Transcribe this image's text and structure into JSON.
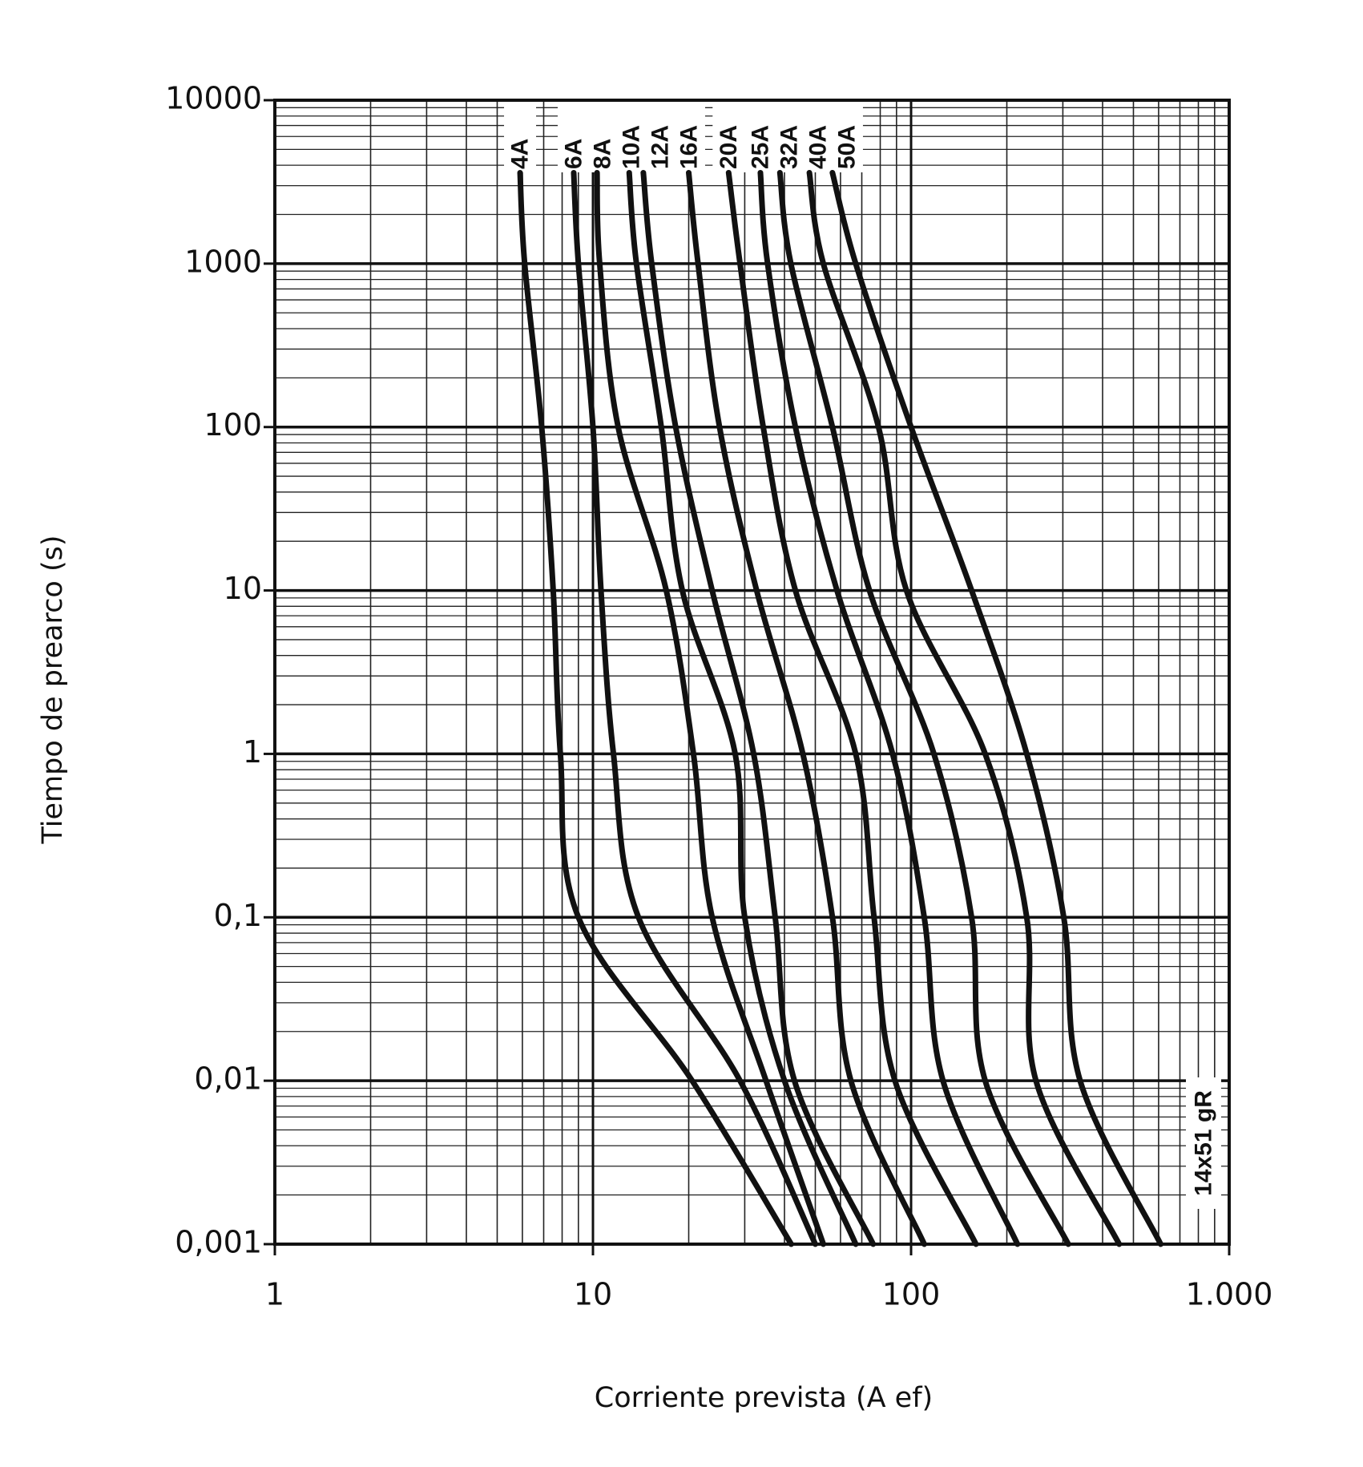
{
  "chart_data": {
    "type": "line",
    "xlabel": "Corriente prevista (A ef)",
    "ylabel": "Tiempo de prearco (s)",
    "annotation": "14x51 gR",
    "xscale": "log",
    "yscale": "log",
    "grid": true,
    "xlim": [
      1,
      1000
    ],
    "xticks": [
      1,
      10,
      100,
      {
        "value": 1000,
        "label": "1.000"
      }
    ],
    "ylim": [
      0.001,
      10000
    ],
    "yticks": [
      {
        "value": 0.001,
        "label": "0,001"
      },
      {
        "value": 0.01,
        "label": "0,01"
      },
      {
        "value": 0.1,
        "label": "0,1"
      },
      1,
      10,
      100,
      1000,
      10000
    ],
    "series": [
      {
        "name": "4A",
        "color": "#111111",
        "x": [
          5.9,
          6.1,
          6.9,
          7.5,
          7.9,
          9.0,
          20.5,
          42
        ],
        "values": [
          3600,
          1000,
          100,
          10,
          1,
          0.1,
          0.01,
          0.001
        ]
      },
      {
        "name": "6A",
        "color": "#111111",
        "x": [
          8.7,
          9.0,
          10,
          10.6,
          11.6,
          13.9,
          29,
          50
        ],
        "values": [
          3600,
          1000,
          100,
          10,
          1,
          0.1,
          0.01,
          0.001
        ]
      },
      {
        "name": "8A",
        "color": "#111111",
        "x": [
          10.3,
          10.5,
          12,
          17,
          20.7,
          23.7,
          35,
          53
        ],
        "values": [
          3600,
          1000,
          100,
          10,
          1,
          0.1,
          0.01,
          0.001
        ]
      },
      {
        "name": "10A",
        "color": "#111111",
        "x": [
          13,
          13.7,
          16.4,
          19.1,
          28,
          30,
          40,
          67
        ],
        "values": [
          3600,
          1000,
          100,
          10,
          1,
          0.1,
          0.01,
          0.001
        ]
      },
      {
        "name": "12A",
        "color": "#111111",
        "x": [
          14.4,
          15.3,
          18.2,
          23.7,
          32,
          37.4,
          43,
          76
        ],
        "values": [
          3600,
          1000,
          100,
          10,
          1,
          0.1,
          0.01,
          0.001
        ]
      },
      {
        "name": "16A",
        "color": "#111111",
        "x": [
          20,
          21.4,
          25,
          32.7,
          45.7,
          56.6,
          64.7,
          110
        ],
        "values": [
          3600,
          1000,
          100,
          10,
          1,
          0.1,
          0.01,
          0.001
        ]
      },
      {
        "name": "20A",
        "color": "#111111",
        "x": [
          26.7,
          29,
          34.3,
          43.3,
          67,
          76.5,
          89,
          160
        ],
        "values": [
          3600,
          1000,
          100,
          10,
          1,
          0.1,
          0.01,
          0.001
        ]
      },
      {
        "name": "25A",
        "color": "#111111",
        "x": [
          33.6,
          35.4,
          43.3,
          58.5,
          87.5,
          110,
          126,
          216
        ],
        "values": [
          3600,
          1000,
          100,
          10,
          1,
          0.1,
          0.01,
          0.001
        ]
      },
      {
        "name": "32A",
        "color": "#111111",
        "x": [
          38.7,
          41.9,
          56.6,
          74,
          118,
          155,
          171,
          312
        ],
        "values": [
          3600,
          1000,
          100,
          10,
          1,
          0.1,
          0.01,
          0.001
        ]
      },
      {
        "name": "40A",
        "color": "#111111",
        "x": [
          47.9,
          53,
          79,
          96.7,
          171,
          231,
          247,
          451
        ],
        "values": [
          3600,
          1000,
          100,
          10,
          1,
          0.1,
          0.01,
          0.001
        ]
      },
      {
        "name": "50A",
        "color": "#111111",
        "x": [
          56.6,
          67,
          100,
          155,
          231,
          302,
          340,
          609
        ],
        "values": [
          3600,
          1000,
          100,
          10,
          1,
          0.1,
          0.01,
          0.001
        ]
      }
    ]
  }
}
